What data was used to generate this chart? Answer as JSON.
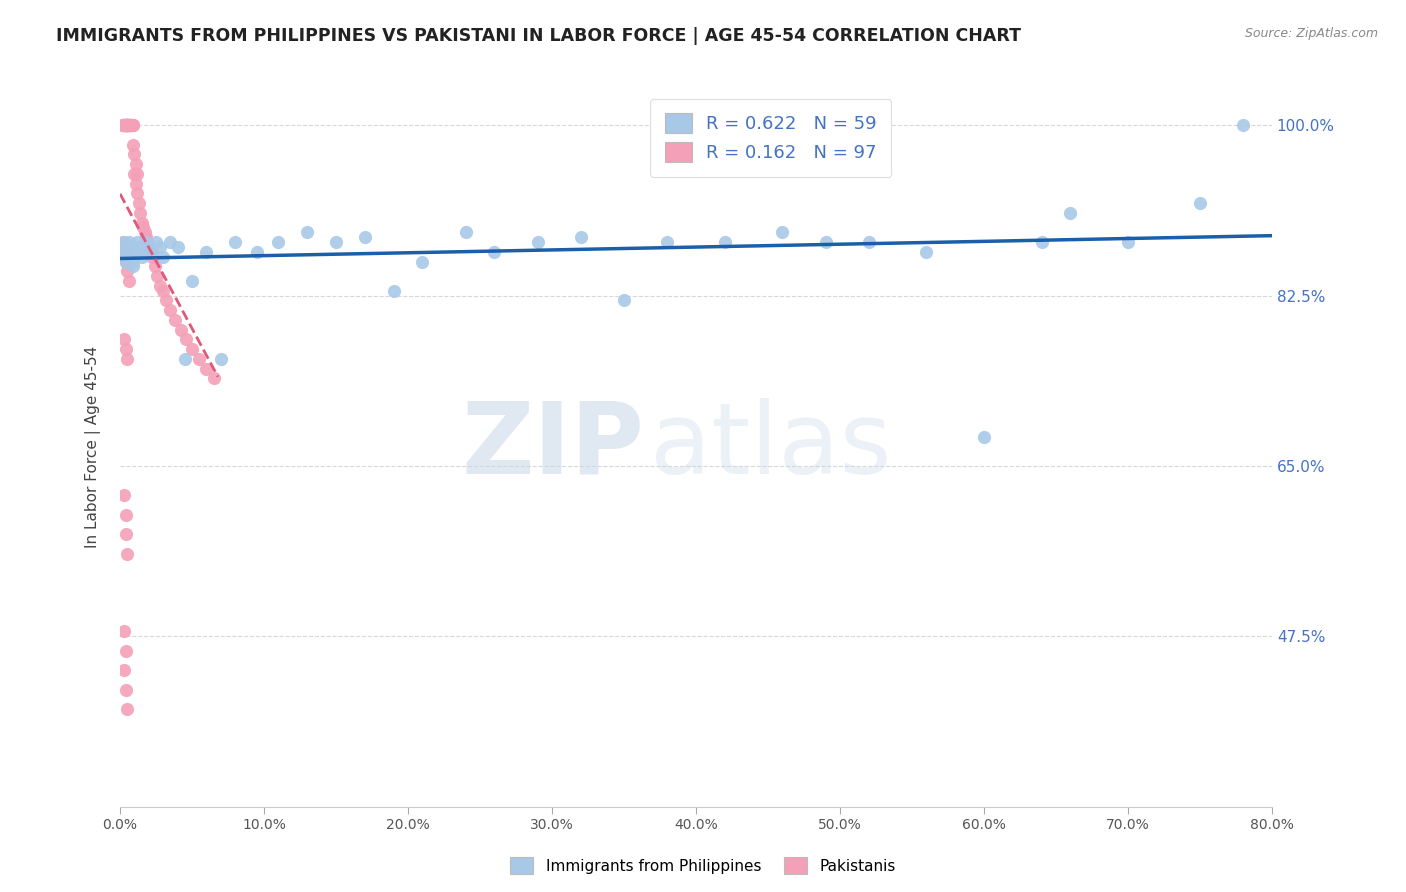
{
  "title": "IMMIGRANTS FROM PHILIPPINES VS PAKISTANI IN LABOR FORCE | AGE 45-54 CORRELATION CHART",
  "source": "Source: ZipAtlas.com",
  "ylabel_label": "In Labor Force | Age 45-54",
  "xmin": 0.0,
  "xmax": 0.8,
  "ymin": 0.3,
  "ymax": 1.04,
  "philippines_color": "#a8c8e8",
  "pakistan_color": "#f4a0b8",
  "philippines_line_color": "#1a5fa8",
  "pakistan_line_color": "#e05878",
  "R_philippines": 0.622,
  "N_philippines": 59,
  "R_pakistan": 0.162,
  "N_pakistan": 97,
  "legend_label_philippines": "Immigrants from Philippines",
  "legend_label_pakistan": "Pakistanis",
  "watermark_zip": "ZIP",
  "watermark_atlas": "atlas",
  "background_color": "#ffffff",
  "grid_color": "#d8d8d8",
  "y_tick_vals": [
    1.0,
    0.825,
    0.65,
    0.475
  ],
  "y_tick_labels": [
    "100.0%",
    "82.5%",
    "65.0%",
    "47.5%"
  ],
  "x_tick_vals": [
    0.0,
    0.1,
    0.2,
    0.3,
    0.4,
    0.5,
    0.6,
    0.7,
    0.8
  ],
  "x_tick_labels": [
    "0.0%",
    "10.0%",
    "20.0%",
    "30.0%",
    "40.0%",
    "50.0%",
    "60.0%",
    "70.0%",
    "80.0%"
  ],
  "phil_x": [
    0.002,
    0.003,
    0.004,
    0.004,
    0.005,
    0.005,
    0.006,
    0.006,
    0.007,
    0.007,
    0.008,
    0.008,
    0.009,
    0.009,
    0.01,
    0.01,
    0.011,
    0.012,
    0.013,
    0.014,
    0.015,
    0.016,
    0.018,
    0.02,
    0.022,
    0.025,
    0.028,
    0.03,
    0.035,
    0.04,
    0.045,
    0.05,
    0.06,
    0.07,
    0.08,
    0.095,
    0.11,
    0.13,
    0.15,
    0.17,
    0.19,
    0.21,
    0.24,
    0.26,
    0.29,
    0.32,
    0.35,
    0.38,
    0.42,
    0.46,
    0.49,
    0.52,
    0.56,
    0.6,
    0.64,
    0.66,
    0.7,
    0.75,
    0.78
  ],
  "phil_y": [
    0.87,
    0.88,
    0.875,
    0.86,
    0.87,
    0.865,
    0.875,
    0.88,
    0.87,
    0.86,
    0.865,
    0.87,
    0.86,
    0.855,
    0.865,
    0.87,
    0.875,
    0.88,
    0.87,
    0.875,
    0.865,
    0.87,
    0.88,
    0.875,
    0.87,
    0.88,
    0.875,
    0.865,
    0.88,
    0.875,
    0.76,
    0.84,
    0.87,
    0.76,
    0.88,
    0.87,
    0.88,
    0.89,
    0.88,
    0.885,
    0.83,
    0.86,
    0.89,
    0.87,
    0.88,
    0.885,
    0.82,
    0.88,
    0.88,
    0.89,
    0.88,
    0.88,
    0.87,
    0.68,
    0.88,
    0.91,
    0.88,
    0.92,
    1.0
  ],
  "pak_x": [
    0.002,
    0.002,
    0.002,
    0.003,
    0.003,
    0.003,
    0.003,
    0.003,
    0.003,
    0.003,
    0.003,
    0.004,
    0.004,
    0.004,
    0.004,
    0.004,
    0.004,
    0.004,
    0.004,
    0.004,
    0.005,
    0.005,
    0.005,
    0.005,
    0.005,
    0.005,
    0.005,
    0.005,
    0.005,
    0.005,
    0.005,
    0.005,
    0.006,
    0.006,
    0.006,
    0.006,
    0.006,
    0.006,
    0.006,
    0.007,
    0.007,
    0.007,
    0.007,
    0.007,
    0.008,
    0.008,
    0.008,
    0.008,
    0.009,
    0.009,
    0.009,
    0.01,
    0.01,
    0.011,
    0.011,
    0.012,
    0.012,
    0.013,
    0.014,
    0.015,
    0.016,
    0.017,
    0.018,
    0.019,
    0.02,
    0.021,
    0.022,
    0.024,
    0.026,
    0.028,
    0.03,
    0.032,
    0.035,
    0.038,
    0.042,
    0.046,
    0.05,
    0.055,
    0.06,
    0.065,
    0.002,
    0.003,
    0.004,
    0.005,
    0.006,
    0.003,
    0.004,
    0.005,
    0.003,
    0.004,
    0.004,
    0.005,
    0.003,
    0.004,
    0.003,
    0.004,
    0.005
  ],
  "pak_y": [
    1.0,
    1.0,
    1.0,
    1.0,
    1.0,
    1.0,
    1.0,
    1.0,
    1.0,
    1.0,
    1.0,
    1.0,
    1.0,
    1.0,
    1.0,
    1.0,
    1.0,
    1.0,
    1.0,
    1.0,
    1.0,
    1.0,
    1.0,
    1.0,
    1.0,
    1.0,
    1.0,
    1.0,
    1.0,
    1.0,
    1.0,
    1.0,
    1.0,
    1.0,
    1.0,
    1.0,
    1.0,
    1.0,
    1.0,
    1.0,
    1.0,
    1.0,
    1.0,
    1.0,
    1.0,
    1.0,
    1.0,
    1.0,
    1.0,
    1.0,
    0.98,
    0.97,
    0.95,
    0.96,
    0.94,
    0.95,
    0.93,
    0.92,
    0.91,
    0.9,
    0.895,
    0.89,
    0.885,
    0.88,
    0.875,
    0.87,
    0.865,
    0.855,
    0.845,
    0.835,
    0.83,
    0.82,
    0.81,
    0.8,
    0.79,
    0.78,
    0.77,
    0.76,
    0.75,
    0.74,
    0.88,
    0.87,
    0.86,
    0.85,
    0.84,
    0.78,
    0.77,
    0.76,
    0.62,
    0.6,
    0.58,
    0.56,
    0.48,
    0.46,
    0.44,
    0.42,
    0.4
  ]
}
